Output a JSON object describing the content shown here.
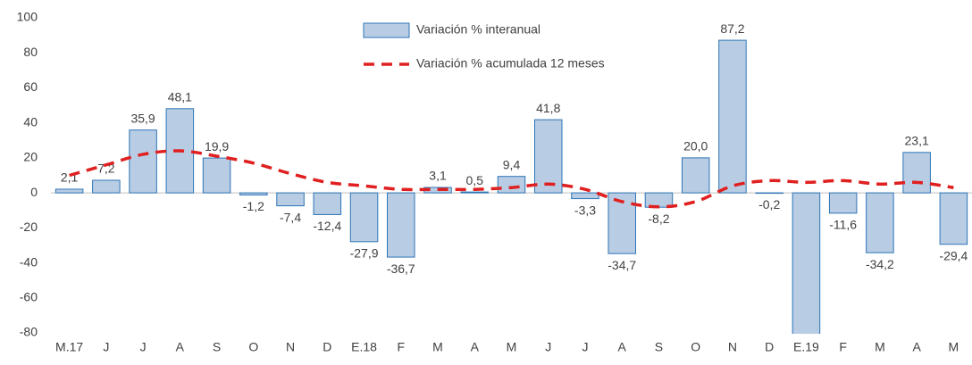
{
  "chart_data": {
    "type": "bar",
    "categories": [
      "M.17",
      "J",
      "J",
      "A",
      "S",
      "O",
      "N",
      "D",
      "E.18",
      "F",
      "M",
      "A",
      "M",
      "J",
      "J",
      "A",
      "S",
      "O",
      "N",
      "D",
      "E.19",
      "F",
      "M",
      "A",
      "M"
    ],
    "series": [
      {
        "name": "Variación % interanual",
        "type": "bar",
        "color": "#b8cce4",
        "edge_color": "#2e75b6",
        "values": [
          2.1,
          7.2,
          35.9,
          48.1,
          19.9,
          -1.2,
          -7.4,
          -12.4,
          -27.9,
          -36.7,
          3.1,
          0.5,
          9.4,
          41.8,
          -3.3,
          -34.7,
          -8.2,
          20.0,
          87.2,
          -0.2,
          -85,
          -11.6,
          -34.2,
          23.1,
          -29.4
        ],
        "value_labels": [
          "2,1",
          "7,2",
          "35,9",
          "48,1",
          "19,9",
          "-1,2",
          "-7,4",
          "-12,4",
          "-27,9",
          "-36,7",
          "3,1",
          "0,5",
          "9,4",
          "41,8",
          "-3,3",
          "-34,7",
          "-8,2",
          "20,0",
          "87,2",
          "-0,2",
          null,
          "-11,6",
          "-34,2",
          "23,1",
          "-29,4"
        ]
      },
      {
        "name": "Variación % acumulada 12 meses",
        "type": "line",
        "color": "#e02020",
        "dashed": true,
        "smooth": true,
        "values": [
          10,
          16,
          22,
          24,
          21,
          17,
          11,
          6,
          4,
          2,
          2,
          2,
          3,
          5,
          2,
          -5,
          -8,
          -5,
          4,
          7,
          6,
          7,
          5,
          6,
          3
        ]
      }
    ],
    "ylim": [
      -80,
      100
    ],
    "yticks": [
      -80,
      -60,
      -40,
      -20,
      0,
      20,
      40,
      60,
      80,
      100
    ],
    "grid": false,
    "legend": "top"
  }
}
